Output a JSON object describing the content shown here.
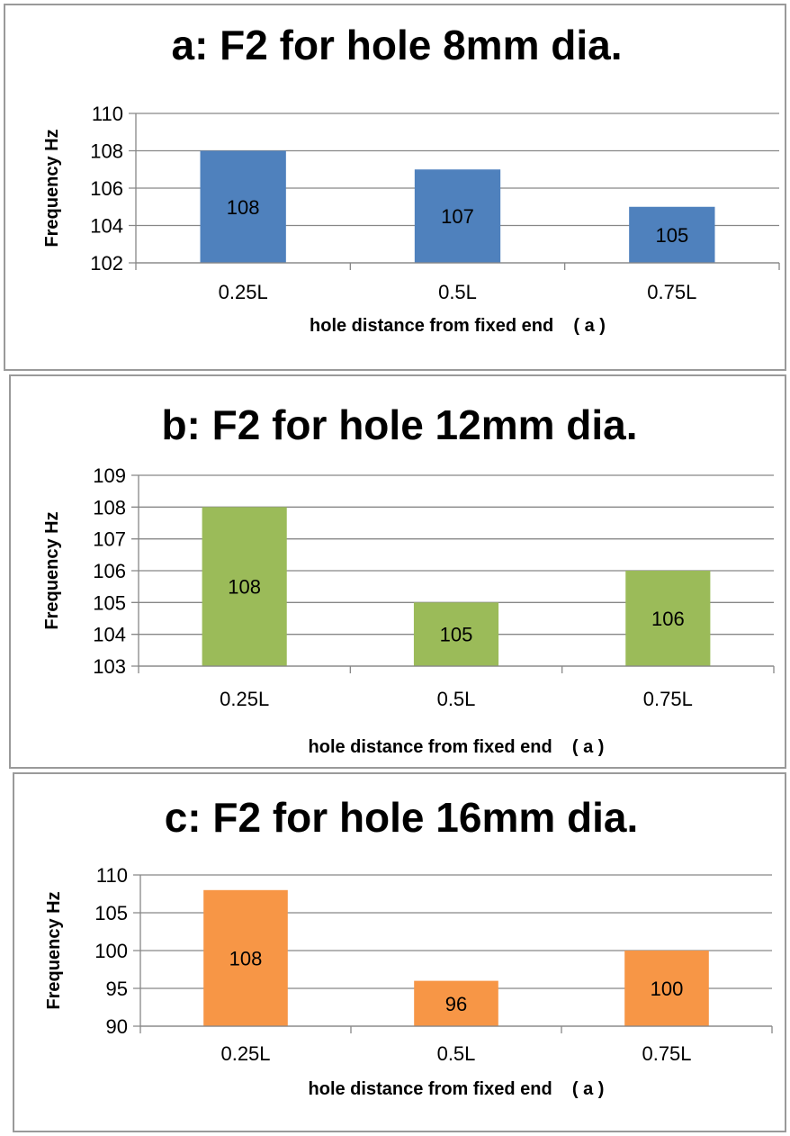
{
  "chart_data": [
    {
      "type": "bar",
      "title": "a:  F2 for hole 8mm dia.",
      "ylabel": "Frequency Hz",
      "xlabel": "hole distance from fixed end    ( a )",
      "categories": [
        "0.25L",
        "0.5L",
        "0.75L"
      ],
      "values": [
        108,
        107,
        105
      ],
      "data_labels": [
        "108",
        "107",
        "105"
      ],
      "ylim": [
        102,
        110
      ],
      "yticks": [
        102,
        104,
        106,
        108,
        110
      ],
      "grid": true,
      "legend": "none",
      "color": "#4F81BD"
    },
    {
      "type": "bar",
      "title": "b:  F2 for hole 12mm dia.",
      "ylabel": "Frequency Hz",
      "xlabel": "hole distance from fixed end    ( a )",
      "categories": [
        "0.25L",
        "0.5L",
        "0.75L"
      ],
      "values": [
        108,
        105,
        106
      ],
      "data_labels": [
        "108",
        "105",
        "106"
      ],
      "ylim": [
        103,
        109
      ],
      "yticks": [
        103,
        104,
        105,
        106,
        107,
        108,
        109
      ],
      "grid": true,
      "legend": "none",
      "color": "#9BBB59"
    },
    {
      "type": "bar",
      "title": "c:  F2 for hole 16mm dia.",
      "ylabel": "Frequency Hz",
      "xlabel": "hole distance from fixed end    ( a )",
      "categories": [
        "0.25L",
        "0.5L",
        "0.75L"
      ],
      "values": [
        108,
        96,
        100
      ],
      "data_labels": [
        "108",
        "96",
        "100"
      ],
      "ylim": [
        90,
        110
      ],
      "yticks": [
        90,
        95,
        100,
        105,
        110
      ],
      "grid": true,
      "legend": "none",
      "color": "#F79646"
    }
  ]
}
